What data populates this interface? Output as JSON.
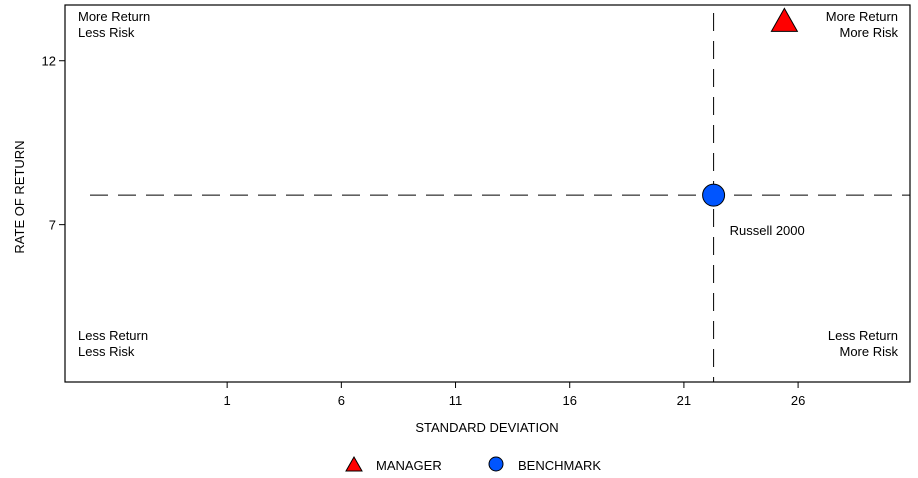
{
  "chart_data": {
    "type": "scatter",
    "xlabel": "STANDARD DEVIATION",
    "ylabel": "RATE OF RETURN",
    "x_ticks": [
      1,
      6,
      11,
      16,
      21,
      26
    ],
    "y_ticks": [
      7,
      12
    ],
    "xlim": [
      -6.1,
      30.9
    ],
    "ylim": [
      2.2,
      13.7
    ],
    "crosshair": {
      "x": 22.3,
      "y": 7.9
    },
    "quadrant_labels": {
      "top_left": [
        "More Return",
        "Less Risk"
      ],
      "top_right": [
        "More Return",
        "More Risk"
      ],
      "bottom_left": [
        "Less Return",
        "Less Risk"
      ],
      "bottom_right": [
        "Less Return",
        "More Risk"
      ]
    },
    "series": [
      {
        "name": "MANAGER",
        "marker": "triangle",
        "color": "#ff0000",
        "points": [
          {
            "x": 25.4,
            "y": 13.2,
            "label": ""
          }
        ]
      },
      {
        "name": "BENCHMARK",
        "marker": "circle",
        "color": "#0055ff",
        "points": [
          {
            "x": 22.3,
            "y": 7.9,
            "label": "Russell 2000"
          }
        ]
      }
    ],
    "legend": {
      "position": "bottom",
      "items": [
        "MANAGER",
        "BENCHMARK"
      ]
    }
  }
}
